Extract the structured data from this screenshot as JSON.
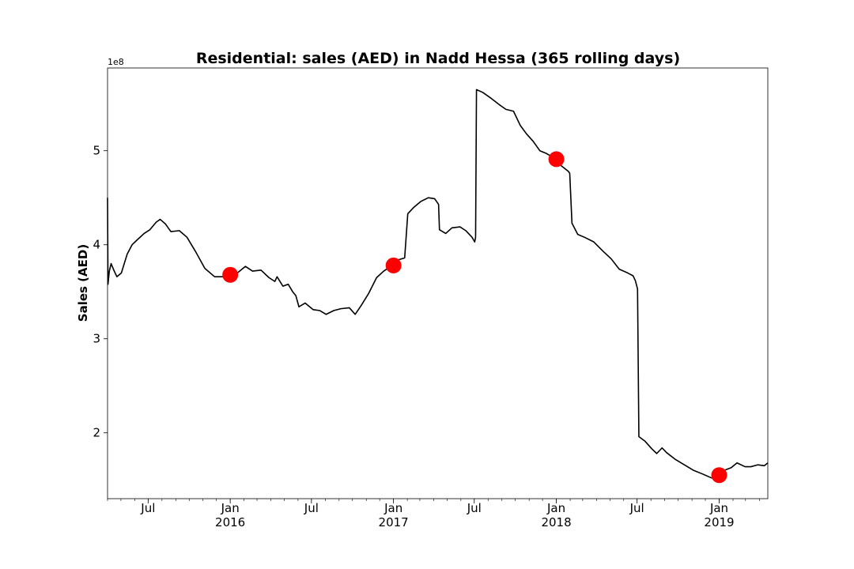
{
  "chart_data": {
    "type": "line",
    "title": "Residential: sales (AED) in Nadd Hessa (365 rolling days)",
    "ylabel": "Sales (AED)",
    "xlabel": "",
    "y_offset_text": "1e8",
    "xlim": [
      "2015-04-01",
      "2019-04-20"
    ],
    "ylim": [
      130000000,
      588000000
    ],
    "yticks": [
      {
        "value": 200000000,
        "label": "2"
      },
      {
        "value": 300000000,
        "label": "3"
      },
      {
        "value": 400000000,
        "label": "4"
      },
      {
        "value": 500000000,
        "label": "5"
      }
    ],
    "xticks_major": [
      {
        "date": "2015-07-01",
        "label": "Jul",
        "year": ""
      },
      {
        "date": "2016-01-01",
        "label": "Jan",
        "year": "2016"
      },
      {
        "date": "2016-07-01",
        "label": "Jul",
        "year": ""
      },
      {
        "date": "2017-01-01",
        "label": "Jan",
        "year": "2017"
      },
      {
        "date": "2017-07-01",
        "label": "Jul",
        "year": ""
      },
      {
        "date": "2018-01-01",
        "label": "Jan",
        "year": "2018"
      },
      {
        "date": "2018-07-01",
        "label": "Jul",
        "year": ""
      },
      {
        "date": "2019-01-01",
        "label": "Jan",
        "year": "2019"
      }
    ],
    "series": [
      {
        "color": "#000000",
        "points": [
          [
            "2015-04-01",
            450000000
          ],
          [
            "2015-04-02",
            358000000
          ],
          [
            "2015-04-05",
            372000000
          ],
          [
            "2015-04-09",
            380000000
          ],
          [
            "2015-04-16",
            372000000
          ],
          [
            "2015-04-22",
            366000000
          ],
          [
            "2015-05-02",
            370000000
          ],
          [
            "2015-05-15",
            390000000
          ],
          [
            "2015-05-26",
            400000000
          ],
          [
            "2015-06-06",
            405000000
          ],
          [
            "2015-06-22",
            412000000
          ],
          [
            "2015-07-05",
            416000000
          ],
          [
            "2015-07-19",
            424000000
          ],
          [
            "2015-07-28",
            427000000
          ],
          [
            "2015-08-09",
            422000000
          ],
          [
            "2015-08-21",
            414000000
          ],
          [
            "2015-09-09",
            415000000
          ],
          [
            "2015-09-26",
            408000000
          ],
          [
            "2015-10-15",
            393000000
          ],
          [
            "2015-11-05",
            375000000
          ],
          [
            "2015-11-27",
            366000000
          ],
          [
            "2015-12-15",
            366000000
          ],
          [
            "2016-01-01",
            368000000
          ],
          [
            "2016-01-17",
            370000000
          ],
          [
            "2016-02-04",
            377000000
          ],
          [
            "2016-02-20",
            372000000
          ],
          [
            "2016-03-10",
            373000000
          ],
          [
            "2016-03-28",
            365000000
          ],
          [
            "2016-04-10",
            361000000
          ],
          [
            "2016-04-15",
            366000000
          ],
          [
            "2016-04-28",
            356000000
          ],
          [
            "2016-05-10",
            358000000
          ],
          [
            "2016-05-20",
            350000000
          ],
          [
            "2016-05-27",
            346000000
          ],
          [
            "2016-06-03",
            334000000
          ],
          [
            "2016-06-17",
            338000000
          ],
          [
            "2016-07-05",
            331000000
          ],
          [
            "2016-07-20",
            330000000
          ],
          [
            "2016-08-03",
            326000000
          ],
          [
            "2016-08-20",
            330000000
          ],
          [
            "2016-09-05",
            332000000
          ],
          [
            "2016-09-24",
            333000000
          ],
          [
            "2016-10-07",
            326000000
          ],
          [
            "2016-10-20",
            335000000
          ],
          [
            "2016-11-06",
            348000000
          ],
          [
            "2016-11-24",
            365000000
          ],
          [
            "2016-12-10",
            372000000
          ],
          [
            "2016-12-26",
            377000000
          ],
          [
            "2017-01-01",
            378000000
          ],
          [
            "2017-01-12",
            384000000
          ],
          [
            "2017-01-26",
            386000000
          ],
          [
            "2017-02-02",
            433000000
          ],
          [
            "2017-02-16",
            440000000
          ],
          [
            "2017-03-03",
            446000000
          ],
          [
            "2017-03-20",
            450000000
          ],
          [
            "2017-04-03",
            449000000
          ],
          [
            "2017-04-12",
            443000000
          ],
          [
            "2017-04-14",
            416000000
          ],
          [
            "2017-04-28",
            412000000
          ],
          [
            "2017-05-12",
            418000000
          ],
          [
            "2017-05-30",
            419000000
          ],
          [
            "2017-06-12",
            415000000
          ],
          [
            "2017-06-26",
            408000000
          ],
          [
            "2017-07-02",
            403000000
          ],
          [
            "2017-07-04",
            408000000
          ],
          [
            "2017-07-06",
            565000000
          ],
          [
            "2017-07-20",
            562000000
          ],
          [
            "2017-08-07",
            556000000
          ],
          [
            "2017-08-26",
            549000000
          ],
          [
            "2017-09-10",
            544000000
          ],
          [
            "2017-09-27",
            542000000
          ],
          [
            "2017-10-12",
            527000000
          ],
          [
            "2017-10-26",
            518000000
          ],
          [
            "2017-11-10",
            510000000
          ],
          [
            "2017-11-25",
            500000000
          ],
          [
            "2017-12-10",
            497000000
          ],
          [
            "2018-01-01",
            491000000
          ],
          [
            "2018-01-12",
            484000000
          ],
          [
            "2018-01-28",
            478000000
          ],
          [
            "2018-01-31",
            476000000
          ],
          [
            "2018-02-05",
            423000000
          ],
          [
            "2018-02-18",
            411000000
          ],
          [
            "2018-03-05",
            408000000
          ],
          [
            "2018-03-26",
            403000000
          ],
          [
            "2018-04-16",
            393000000
          ],
          [
            "2018-05-04",
            385000000
          ],
          [
            "2018-05-22",
            374000000
          ],
          [
            "2018-06-10",
            370000000
          ],
          [
            "2018-06-22",
            367000000
          ],
          [
            "2018-06-27",
            362000000
          ],
          [
            "2018-07-02",
            353000000
          ],
          [
            "2018-07-05",
            196000000
          ],
          [
            "2018-07-19",
            191000000
          ],
          [
            "2018-08-03",
            183000000
          ],
          [
            "2018-08-14",
            178000000
          ],
          [
            "2018-08-26",
            184000000
          ],
          [
            "2018-09-05",
            179000000
          ],
          [
            "2018-09-24",
            172000000
          ],
          [
            "2018-10-15",
            166000000
          ],
          [
            "2018-11-05",
            160000000
          ],
          [
            "2018-11-26",
            156000000
          ],
          [
            "2018-12-15",
            152000000
          ],
          [
            "2019-01-01",
            155000000
          ],
          [
            "2019-01-12",
            160000000
          ],
          [
            "2019-01-28",
            163000000
          ],
          [
            "2019-02-10",
            168000000
          ],
          [
            "2019-02-28",
            164000000
          ],
          [
            "2019-03-13",
            164000000
          ],
          [
            "2019-03-29",
            166000000
          ],
          [
            "2019-04-12",
            165000000
          ],
          [
            "2019-04-20",
            168000000
          ]
        ]
      }
    ],
    "markers": [
      {
        "date": "2016-01-01",
        "value": 368000000
      },
      {
        "date": "2017-01-01",
        "value": 378000000
      },
      {
        "date": "2018-01-01",
        "value": 491000000
      },
      {
        "date": "2019-01-01",
        "value": 155000000
      }
    ],
    "marker_color": "#ff0000",
    "grid": false,
    "legend": "none"
  }
}
